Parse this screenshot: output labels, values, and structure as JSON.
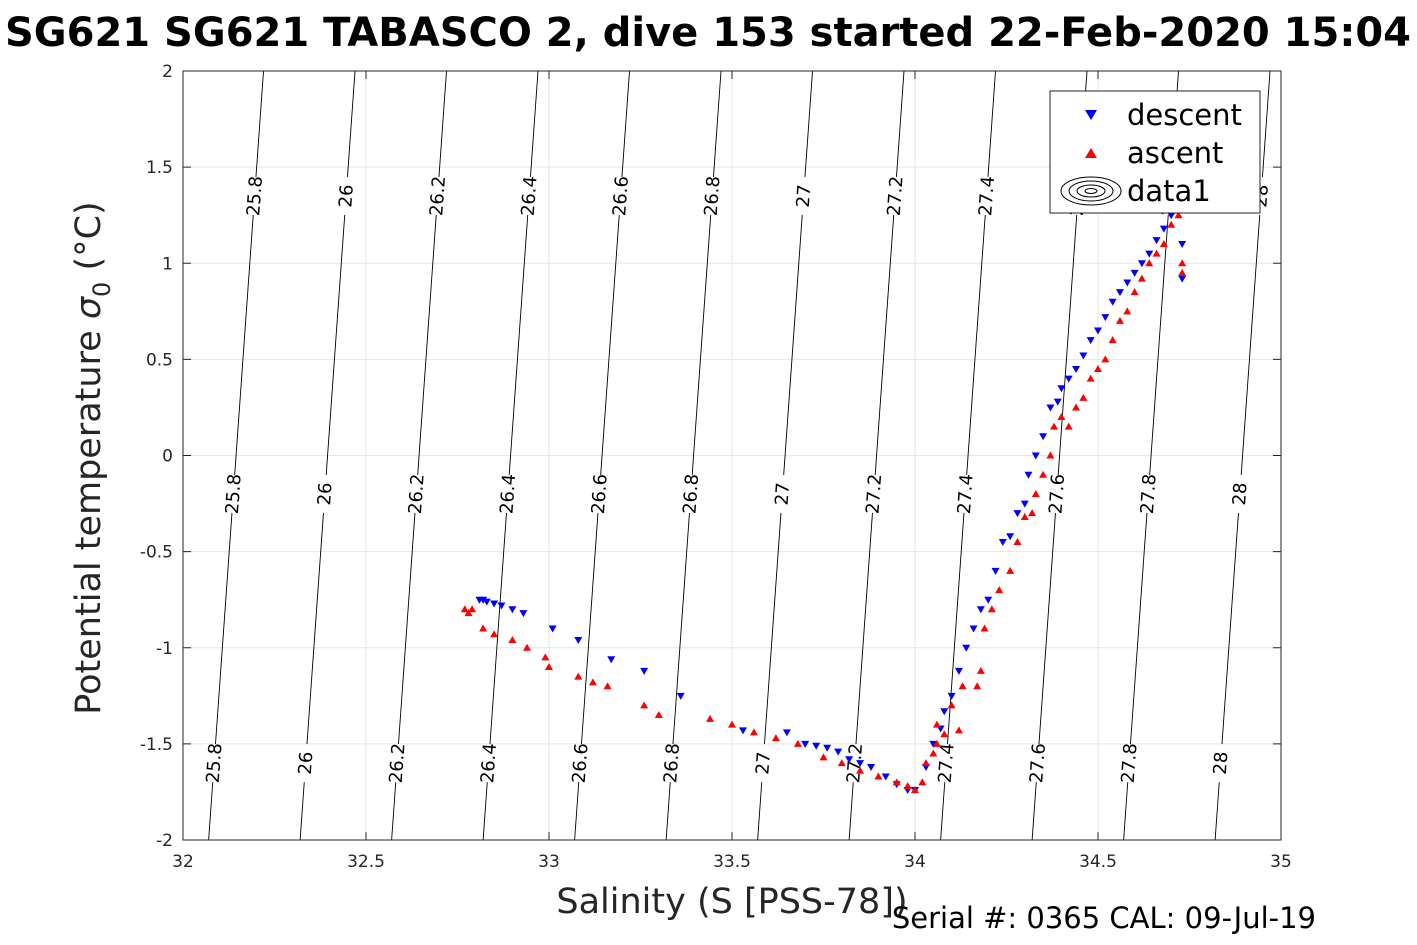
{
  "chart_data": {
    "type": "scatter",
    "title": "SG621 SG621 TABASCO 2, dive 153 started 22-Feb-2020 15:04",
    "xlabel": "Salinity (S [PSS-78])",
    "ylabel_main": "Potential temperature ",
    "ylabel_sub": "0",
    "ylabel_sigma": "σ",
    "ylabel_unit": " (°C)",
    "xlim": [
      32,
      35
    ],
    "ylim": [
      -2,
      2
    ],
    "x_ticks": [
      32,
      32.5,
      33,
      33.5,
      34,
      34.5,
      35
    ],
    "x_tick_labels": [
      "32",
      "32.5",
      "33",
      "33.5",
      "34",
      "34.5",
      "35"
    ],
    "y_ticks": [
      -2,
      -1.5,
      -1,
      -0.5,
      0,
      0.5,
      1,
      1.5,
      2
    ],
    "y_tick_labels": [
      "-2",
      "-1.5",
      "-1",
      "-0.5",
      "0",
      "0.5",
      "1",
      "1.5",
      "2"
    ],
    "grid": true,
    "legend_position": "top-right",
    "legend": [
      "descent",
      "ascent",
      "data1"
    ],
    "footer": "Serial #: 0365  CAL: 09-Jul-19",
    "contours": [
      {
        "level": 25.8,
        "label": "25.8",
        "s_bottom": 32.07,
        "s_top": 32.22
      },
      {
        "level": 26.0,
        "label": "26",
        "s_bottom": 32.32,
        "s_top": 32.47
      },
      {
        "level": 26.2,
        "label": "26.2",
        "s_bottom": 32.57,
        "s_top": 32.72
      },
      {
        "level": 26.4,
        "label": "26.4",
        "s_bottom": 32.82,
        "s_top": 32.97
      },
      {
        "level": 26.6,
        "label": "26.6",
        "s_bottom": 33.07,
        "s_top": 33.22
      },
      {
        "level": 26.8,
        "label": "26.8",
        "s_bottom": 33.32,
        "s_top": 33.47
      },
      {
        "level": 27.0,
        "label": "27",
        "s_bottom": 33.57,
        "s_top": 33.72
      },
      {
        "level": 27.2,
        "label": "27.2",
        "s_bottom": 33.82,
        "s_top": 33.97
      },
      {
        "level": 27.4,
        "label": "27.4",
        "s_bottom": 34.07,
        "s_top": 34.22
      },
      {
        "level": 27.6,
        "label": "27.6",
        "s_bottom": 34.32,
        "s_top": 34.47
      },
      {
        "level": 27.8,
        "label": "27.8",
        "s_bottom": 34.57,
        "s_top": 34.72
      },
      {
        "level": 28.0,
        "label": "28",
        "s_bottom": 34.82,
        "s_top": 34.97
      }
    ],
    "series": [
      {
        "name": "descent",
        "color": "#0000ff",
        "marker": "triangle-down",
        "points": [
          [
            32.81,
            -0.75
          ],
          [
            32.82,
            -0.75
          ],
          [
            32.83,
            -0.76
          ],
          [
            32.85,
            -0.77
          ],
          [
            32.87,
            -0.78
          ],
          [
            32.9,
            -0.8
          ],
          [
            32.93,
            -0.82
          ],
          [
            33.01,
            -0.9
          ],
          [
            33.08,
            -0.96
          ],
          [
            33.17,
            -1.06
          ],
          [
            33.26,
            -1.12
          ],
          [
            33.36,
            -1.25
          ],
          [
            33.53,
            -1.43
          ],
          [
            33.65,
            -1.44
          ],
          [
            33.7,
            -1.5
          ],
          [
            33.73,
            -1.51
          ],
          [
            33.76,
            -1.52
          ],
          [
            33.79,
            -1.54
          ],
          [
            33.82,
            -1.58
          ],
          [
            33.85,
            -1.6
          ],
          [
            33.88,
            -1.62
          ],
          [
            33.92,
            -1.67
          ],
          [
            33.95,
            -1.71
          ],
          [
            33.98,
            -1.74
          ],
          [
            34.0,
            -1.74
          ],
          [
            34.03,
            -1.62
          ],
          [
            34.05,
            -1.5
          ],
          [
            34.07,
            -1.42
          ],
          [
            34.08,
            -1.33
          ],
          [
            34.1,
            -1.25
          ],
          [
            34.12,
            -1.12
          ],
          [
            34.14,
            -1.0
          ],
          [
            34.16,
            -0.9
          ],
          [
            34.18,
            -0.8
          ],
          [
            34.2,
            -0.75
          ],
          [
            34.22,
            -0.6
          ],
          [
            34.24,
            -0.45
          ],
          [
            34.26,
            -0.42
          ],
          [
            34.28,
            -0.3
          ],
          [
            34.3,
            -0.25
          ],
          [
            34.31,
            -0.1
          ],
          [
            34.33,
            0.0
          ],
          [
            34.35,
            0.1
          ],
          [
            34.37,
            0.25
          ],
          [
            34.39,
            0.28
          ],
          [
            34.4,
            0.35
          ],
          [
            34.42,
            0.4
          ],
          [
            34.44,
            0.45
          ],
          [
            34.46,
            0.52
          ],
          [
            34.48,
            0.6
          ],
          [
            34.5,
            0.65
          ],
          [
            34.52,
            0.72
          ],
          [
            34.54,
            0.8
          ],
          [
            34.56,
            0.85
          ],
          [
            34.58,
            0.9
          ],
          [
            34.6,
            0.95
          ],
          [
            34.62,
            1.0
          ],
          [
            34.64,
            1.05
          ],
          [
            34.66,
            1.12
          ],
          [
            34.68,
            1.18
          ],
          [
            34.7,
            1.25
          ],
          [
            34.72,
            1.3
          ],
          [
            34.73,
            1.1
          ],
          [
            34.73,
            0.92
          ]
        ]
      },
      {
        "name": "ascent",
        "color": "#ff0000",
        "marker": "triangle-up",
        "points": [
          [
            32.77,
            -0.8
          ],
          [
            32.78,
            -0.82
          ],
          [
            32.79,
            -0.8
          ],
          [
            32.82,
            -0.9
          ],
          [
            32.85,
            -0.93
          ],
          [
            32.9,
            -0.96
          ],
          [
            32.94,
            -1.0
          ],
          [
            32.99,
            -1.05
          ],
          [
            33.0,
            -1.1
          ],
          [
            33.08,
            -1.15
          ],
          [
            33.12,
            -1.18
          ],
          [
            33.16,
            -1.2
          ],
          [
            33.26,
            -1.3
          ],
          [
            33.3,
            -1.35
          ],
          [
            33.44,
            -1.37
          ],
          [
            33.5,
            -1.4
          ],
          [
            33.56,
            -1.44
          ],
          [
            33.62,
            -1.47
          ],
          [
            33.68,
            -1.5
          ],
          [
            33.75,
            -1.57
          ],
          [
            33.8,
            -1.6
          ],
          [
            33.85,
            -1.64
          ],
          [
            33.9,
            -1.67
          ],
          [
            33.95,
            -1.7
          ],
          [
            33.98,
            -1.72
          ],
          [
            34.0,
            -1.74
          ],
          [
            34.02,
            -1.7
          ],
          [
            34.03,
            -1.6
          ],
          [
            34.05,
            -1.55
          ],
          [
            34.06,
            -1.5
          ],
          [
            34.08,
            -1.45
          ],
          [
            34.12,
            -1.43
          ],
          [
            34.06,
            -1.4
          ],
          [
            34.1,
            -1.3
          ],
          [
            34.13,
            -1.2
          ],
          [
            34.17,
            -1.2
          ],
          [
            34.18,
            -1.12
          ],
          [
            34.19,
            -0.9
          ],
          [
            34.21,
            -0.8
          ],
          [
            34.23,
            -0.7
          ],
          [
            34.26,
            -0.6
          ],
          [
            34.28,
            -0.45
          ],
          [
            34.3,
            -0.32
          ],
          [
            34.32,
            -0.3
          ],
          [
            34.33,
            -0.2
          ],
          [
            34.35,
            -0.1
          ],
          [
            34.37,
            0.0
          ],
          [
            34.38,
            0.15
          ],
          [
            34.4,
            0.2
          ],
          [
            34.42,
            0.15
          ],
          [
            34.44,
            0.25
          ],
          [
            34.46,
            0.3
          ],
          [
            34.48,
            0.4
          ],
          [
            34.5,
            0.45
          ],
          [
            34.52,
            0.5
          ],
          [
            34.54,
            0.6
          ],
          [
            34.56,
            0.7
          ],
          [
            34.58,
            0.75
          ],
          [
            34.6,
            0.85
          ],
          [
            34.62,
            0.92
          ],
          [
            34.64,
            1.0
          ],
          [
            34.66,
            1.05
          ],
          [
            34.68,
            1.1
          ],
          [
            34.7,
            1.2
          ],
          [
            34.72,
            1.25
          ],
          [
            34.73,
            1.0
          ],
          [
            34.73,
            0.95
          ]
        ]
      }
    ]
  }
}
